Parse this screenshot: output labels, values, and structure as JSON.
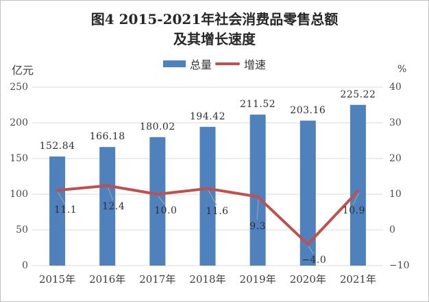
{
  "title": {
    "line1": "图4  2015-2021年社会消费品零售总额",
    "line2": "及其增长速度"
  },
  "legend": {
    "bar_label": "总量",
    "line_label": "增速"
  },
  "axes": {
    "left_unit": "亿元",
    "right_unit": "%"
  },
  "colors": {
    "bar": "#4f81bd",
    "line": "#c0504d",
    "gridline": "#d9d9d9",
    "leader": "#a6a6a6"
  },
  "chart_data": {
    "type": "bar",
    "subtype": "bar+line combo",
    "title": "图4 2015-2021年社会消费品零售总额及其增长速度",
    "categories": [
      "2015年",
      "2016年",
      "2017年",
      "2018年",
      "2019年",
      "2020年",
      "2021年"
    ],
    "series": [
      {
        "name": "总量",
        "type": "bar",
        "axis": "left",
        "color": "#4f81bd",
        "decimals": 2,
        "values": [
          152.84,
          166.18,
          180.02,
          194.42,
          211.52,
          203.16,
          225.22
        ]
      },
      {
        "name": "增速",
        "type": "line",
        "axis": "right",
        "color": "#c0504d",
        "decimals": 1,
        "values": [
          11.1,
          12.4,
          10.0,
          11.6,
          9.3,
          -4.0,
          10.9
        ]
      }
    ],
    "left_axis": {
      "label": "亿元",
      "min": 0,
      "max": 250,
      "step": 50,
      "ticks": [
        0,
        50,
        100,
        150,
        200,
        250
      ]
    },
    "right_axis": {
      "label": "%",
      "min": -10,
      "max": 40,
      "step": 10,
      "ticks": [
        -10,
        0,
        10,
        20,
        30,
        40
      ]
    },
    "grid": true,
    "legend_position": "top",
    "data_labels": true
  }
}
